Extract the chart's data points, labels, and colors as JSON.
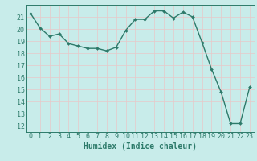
{
  "x": [
    0,
    1,
    2,
    3,
    4,
    5,
    6,
    7,
    8,
    9,
    10,
    11,
    12,
    13,
    14,
    15,
    16,
    17,
    18,
    19,
    20,
    21,
    22,
    23
  ],
  "y": [
    21.3,
    20.1,
    19.4,
    19.6,
    18.8,
    18.6,
    18.4,
    18.4,
    18.2,
    18.5,
    19.9,
    20.8,
    20.8,
    21.5,
    21.5,
    20.9,
    21.4,
    21.0,
    18.9,
    16.7,
    14.8,
    12.2,
    12.2,
    15.2
  ],
  "xlabel": "Humidex (Indice chaleur)",
  "xlim": [
    -0.5,
    23.5
  ],
  "ylim": [
    11.5,
    22.0
  ],
  "yticks": [
    12,
    13,
    14,
    15,
    16,
    17,
    18,
    19,
    20,
    21
  ],
  "xticks": [
    0,
    1,
    2,
    3,
    4,
    5,
    6,
    7,
    8,
    9,
    10,
    11,
    12,
    13,
    14,
    15,
    16,
    17,
    18,
    19,
    20,
    21,
    22,
    23
  ],
  "line_color": "#2d7a6a",
  "marker": "D",
  "marker_size": 2.0,
  "line_width": 1.0,
  "bg_color": "#c8ecea",
  "grid_h_color": "#e8c8c8",
  "grid_v_color": "#e8c8c8",
  "tick_color": "#2d7a6a",
  "xlabel_fontsize": 7,
  "tick_fontsize": 6
}
